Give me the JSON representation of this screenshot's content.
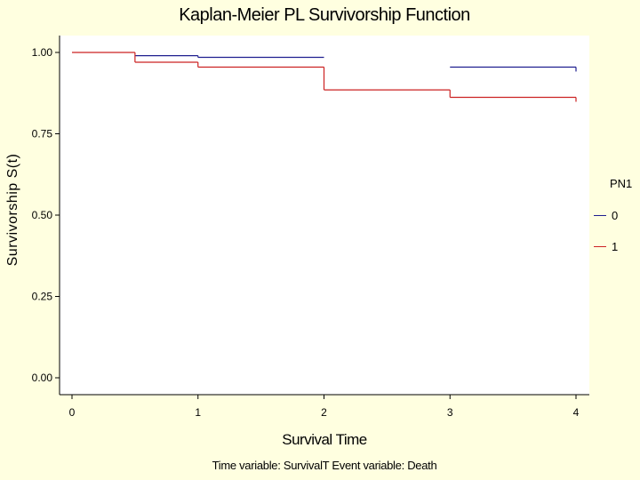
{
  "chart_data": {
    "type": "line",
    "step": true,
    "title": "Kaplan-Meier PL Survivorship Function",
    "xlabel": "Survival Time",
    "ylabel": "Survivorship S(t)",
    "footnote": "Time variable: SurvivalT   Event variable: Death",
    "xlim": [
      0,
      4
    ],
    "ylim": [
      0,
      1
    ],
    "xticks": [
      "0",
      "1",
      "2",
      "3",
      "4"
    ],
    "yticks": [
      "0.00",
      "0.25",
      "0.50",
      "0.75",
      "1.00"
    ],
    "grid": false,
    "legend": {
      "title": "PN1",
      "placement": "right"
    },
    "series": [
      {
        "name": "0",
        "color": "#1f1f8f",
        "segments": [
          {
            "x": [
              0.5,
              1.0
            ],
            "y": 0.99
          },
          {
            "x": [
              1.0,
              2.0
            ],
            "y": 0.985
          },
          {
            "x": [
              3.0,
              4.0
            ],
            "y": 0.955
          }
        ]
      },
      {
        "name": "1",
        "color": "#cc2222",
        "segments": [
          {
            "x": [
              0.0,
              0.5
            ],
            "y": 1.0
          },
          {
            "x": [
              0.5,
              1.0
            ],
            "y": 0.97
          },
          {
            "x": [
              1.0,
              2.0
            ],
            "y": 0.955
          },
          {
            "x": [
              2.0,
              3.0
            ],
            "y": 0.885
          },
          {
            "x": [
              3.0,
              4.0
            ],
            "y": 0.862
          }
        ]
      }
    ]
  }
}
